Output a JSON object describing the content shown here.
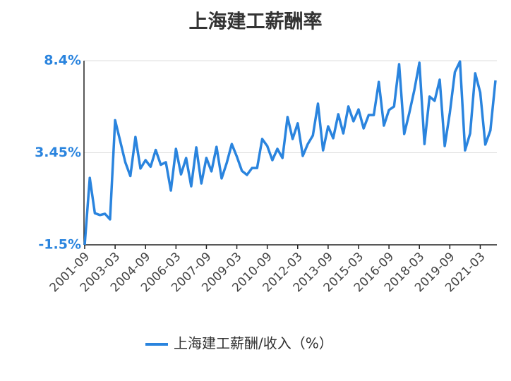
{
  "chart_data": {
    "type": "line",
    "title": "上海建工薪酬率",
    "categories": [
      "2001-09",
      null,
      null,
      null,
      null,
      null,
      "2003-03",
      null,
      null,
      null,
      null,
      null,
      "2004-09",
      null,
      null,
      null,
      null,
      null,
      "2006-03",
      null,
      null,
      null,
      null,
      null,
      "2007-09",
      null,
      null,
      null,
      null,
      null,
      "2009-03",
      null,
      null,
      null,
      null,
      null,
      "2010-09",
      null,
      null,
      null,
      null,
      null,
      "2012-03",
      null,
      null,
      null,
      null,
      null,
      "2013-09",
      null,
      null,
      null,
      null,
      null,
      "2015-03",
      null,
      null,
      null,
      null,
      null,
      "2016-09",
      null,
      null,
      null,
      null,
      null,
      "2018-03",
      null,
      null,
      null,
      null,
      null,
      "2019-09",
      null,
      null,
      null,
      null,
      null,
      "2021-03",
      null,
      null,
      null
    ],
    "series": [
      {
        "name": "上海建工薪酬/收入（%）",
        "color": "#2a84de",
        "values": [
          -1.5,
          2.1,
          0.2,
          0.1,
          0.17,
          -0.13,
          5.2,
          4.08,
          2.94,
          2.2,
          4.3,
          2.6,
          3.05,
          2.7,
          3.6,
          2.8,
          2.94,
          1.42,
          3.66,
          2.29,
          3.17,
          1.65,
          3.74,
          1.8,
          3.17,
          2.45,
          3.77,
          2.07,
          2.9,
          3.92,
          3.24,
          2.48,
          2.26,
          2.63,
          2.63,
          4.19,
          3.81,
          3.05,
          3.66,
          3.17,
          5.37,
          4.19,
          5.03,
          3.28,
          3.92,
          4.38,
          6.09,
          3.58,
          4.87,
          4.23,
          5.52,
          4.49,
          5.94,
          5.14,
          5.78,
          4.76,
          5.48,
          5.48,
          7.26,
          4.91,
          5.75,
          5.94,
          8.21,
          4.46,
          5.59,
          6.81,
          8.29,
          3.92,
          6.47,
          6.24,
          7.38,
          3.81,
          5.59,
          7.79,
          8.36,
          3.58,
          4.49,
          7.72,
          6.69,
          3.89,
          4.65,
          7.34
        ]
      }
    ],
    "ylim": [
      -1.5,
      8.4
    ],
    "yticks": [
      {
        "value": -1.5,
        "label": "-1.5%"
      },
      {
        "value": 3.45,
        "label": "3.45%"
      },
      {
        "value": 8.4,
        "label": "8.4%"
      }
    ],
    "grid": true
  }
}
